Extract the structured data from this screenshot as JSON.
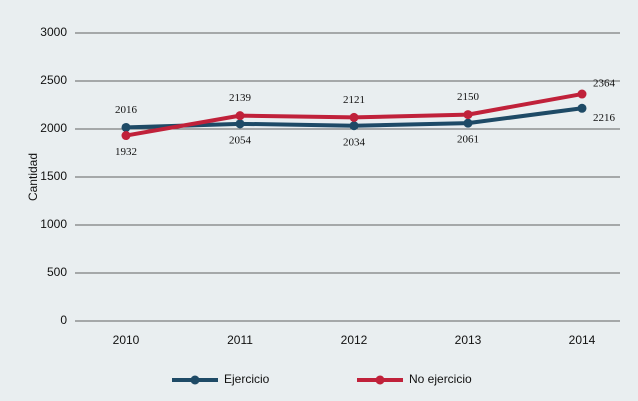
{
  "chart_data": {
    "type": "line",
    "y_label": "Cantidad",
    "categories": [
      "2010",
      "2011",
      "2012",
      "2013",
      "2014"
    ],
    "series": [
      {
        "name": "Ejercicio",
        "color": "#1e4a66",
        "values": [
          2016,
          2054,
          2034,
          2061,
          2216
        ]
      },
      {
        "name": "No ejercicio",
        "color": "#c0213a",
        "values": [
          1932,
          2139,
          2121,
          2150,
          2364
        ]
      }
    ],
    "ylim": [
      0,
      3000
    ],
    "yticks": [
      0,
      500,
      1000,
      1500,
      2000,
      2500,
      3000
    ],
    "grid": true,
    "legend": "bottom"
  }
}
